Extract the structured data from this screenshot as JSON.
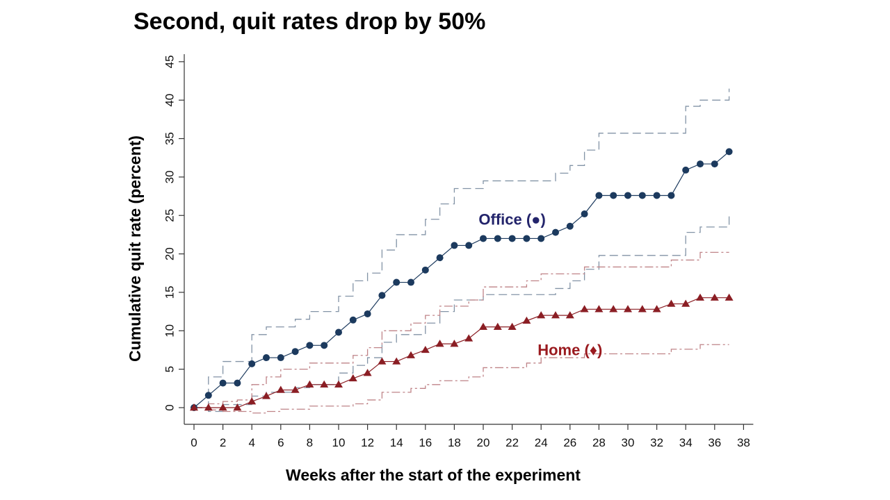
{
  "slide": {
    "title": "Second, quit rates drop by 50%"
  },
  "chart_data": {
    "type": "line",
    "xlabel": "Weeks after the start of the experiment",
    "ylabel": "Cumulative quit rate (percent)",
    "xlim": [
      0,
      38
    ],
    "ylim": [
      0,
      45
    ],
    "x_ticks": [
      0,
      2,
      4,
      6,
      8,
      10,
      12,
      14,
      16,
      18,
      20,
      22,
      24,
      26,
      28,
      30,
      32,
      34,
      36,
      38
    ],
    "y_ticks": [
      0,
      5,
      10,
      15,
      20,
      25,
      30,
      35,
      40,
      45
    ],
    "grid": false,
    "x": [
      0,
      1,
      2,
      3,
      4,
      5,
      6,
      7,
      8,
      9,
      10,
      11,
      12,
      13,
      14,
      15,
      16,
      17,
      18,
      19,
      20,
      21,
      22,
      23,
      24,
      25,
      26,
      27,
      28,
      29,
      30,
      31,
      32,
      33,
      34,
      35,
      36,
      37
    ],
    "series": [
      {
        "name": "Office (●)",
        "color": "#1c3a5e",
        "marker": "circle",
        "values": [
          0,
          1.6,
          3.2,
          3.2,
          5.7,
          6.5,
          6.5,
          7.3,
          8.1,
          8.1,
          9.8,
          11.4,
          12.2,
          14.6,
          16.3,
          16.3,
          17.9,
          19.5,
          21.1,
          21.1,
          22.0,
          22.0,
          22.0,
          22.0,
          22.0,
          22.8,
          23.6,
          25.2,
          27.6,
          27.6,
          27.6,
          27.6,
          27.6,
          27.6,
          30.9,
          31.7,
          31.7,
          33.3
        ],
        "ci_upper": [
          0,
          4.0,
          6.0,
          6.0,
          9.5,
          10.5,
          10.5,
          11.5,
          12.5,
          12.5,
          14.5,
          16.5,
          17.5,
          20.5,
          22.5,
          22.5,
          24.5,
          26.5,
          28.5,
          28.5,
          29.5,
          29.5,
          29.5,
          29.5,
          29.5,
          30.5,
          31.5,
          33.5,
          35.7,
          35.7,
          35.7,
          35.7,
          35.7,
          35.7,
          39.2,
          40.0,
          40.0,
          41.5
        ],
        "ci_lower": [
          0,
          -0.5,
          0.4,
          0.4,
          1.5,
          2.0,
          2.0,
          2.6,
          3.0,
          3.0,
          4.5,
          5.5,
          6.5,
          8.5,
          9.5,
          9.5,
          11.0,
          12.5,
          14.0,
          14.0,
          14.7,
          14.7,
          14.7,
          14.7,
          14.7,
          15.5,
          16.5,
          18.0,
          19.8,
          19.8,
          19.8,
          19.8,
          19.8,
          19.8,
          22.8,
          23.5,
          23.5,
          25.0
        ]
      },
      {
        "name": "Home (♦)",
        "color": "#8b1e24",
        "marker": "triangle",
        "values": [
          0,
          0,
          0,
          0,
          0.8,
          1.5,
          2.3,
          2.3,
          3.0,
          3.0,
          3.0,
          3.8,
          4.5,
          6.0,
          6.0,
          6.8,
          7.5,
          8.3,
          8.3,
          9.0,
          10.5,
          10.5,
          10.5,
          11.3,
          12.0,
          12.0,
          12.0,
          12.8,
          12.8,
          12.8,
          12.8,
          12.8,
          12.8,
          13.5,
          13.5,
          14.3,
          14.3,
          14.3
        ],
        "ci_upper": [
          0,
          0.5,
          0.8,
          1.0,
          3.0,
          4.0,
          5.0,
          5.0,
          5.8,
          5.8,
          5.8,
          6.8,
          7.8,
          10.0,
          10.0,
          11.0,
          12.0,
          13.2,
          13.2,
          14.0,
          15.7,
          15.7,
          15.7,
          16.5,
          17.4,
          17.4,
          17.4,
          18.3,
          18.3,
          18.3,
          18.3,
          18.3,
          18.3,
          19.2,
          19.2,
          20.2,
          20.2,
          20.2
        ],
        "ci_lower": [
          0,
          -0.3,
          -0.5,
          -0.5,
          -0.7,
          -0.5,
          -0.2,
          -0.2,
          0.2,
          0.2,
          0.2,
          0.5,
          1.0,
          2.0,
          2.0,
          2.5,
          3.0,
          3.5,
          3.5,
          4.0,
          5.2,
          5.2,
          5.2,
          5.8,
          6.5,
          6.5,
          6.5,
          7.0,
          7.0,
          7.0,
          7.0,
          7.0,
          7.0,
          7.6,
          7.6,
          8.2,
          8.2,
          8.2
        ]
      }
    ],
    "annotations": [
      {
        "text": "Office (●)",
        "x": 22,
        "y": 24.5,
        "series": 0
      },
      {
        "text": "Home (♦)",
        "x": 26,
        "y": 7.5,
        "series": 1
      }
    ]
  }
}
